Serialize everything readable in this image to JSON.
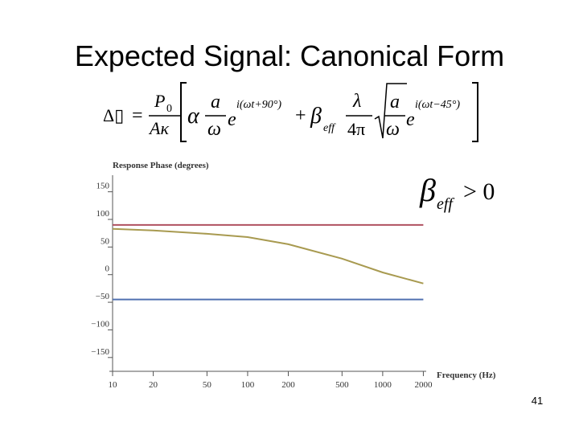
{
  "slide": {
    "title": "Expected Signal: Canonical Form",
    "page_number": "41",
    "formula": [
      "Δ▯",
      "=",
      "P",
      "0",
      "Aκ",
      "α",
      "a",
      "ω",
      "e",
      "i(ωt+90°)",
      "+",
      "β",
      "eff",
      "λ",
      "4π",
      "a",
      "ω",
      "e",
      "i(ωt−45°)"
    ],
    "condition": [
      "β",
      "eff",
      "> 0"
    ]
  },
  "chart_data": {
    "type": "line",
    "y_label": "Response Phase (degrees)",
    "x_label": "Frequency (Hz)",
    "x": [
      10,
      20,
      50,
      100,
      200,
      500,
      1000,
      2000
    ],
    "series": [
      {
        "color": "#b05060",
        "values": [
          90,
          90,
          90,
          90,
          90,
          90,
          90,
          90
        ]
      },
      {
        "color": "#5070b0",
        "values": [
          -45,
          -45,
          -45,
          -45,
          -45,
          -45,
          -45,
          -45
        ]
      },
      {
        "color": "#a89a50",
        "values": [
          83,
          80,
          74,
          68,
          55,
          29,
          4,
          -16
        ]
      }
    ],
    "xlim": [
      10,
      2100
    ],
    "log_x": true,
    "xticks": [
      10,
      20,
      50,
      100,
      200,
      500,
      1000,
      2000
    ],
    "ylim": [
      -175,
      180
    ],
    "yticks": [
      150,
      100,
      50,
      0,
      {
        "value": -50,
        "label": "−50"
      },
      {
        "value": -100,
        "label": "−100"
      },
      {
        "value": -150,
        "label": "−150"
      }
    ],
    "grid": false
  }
}
